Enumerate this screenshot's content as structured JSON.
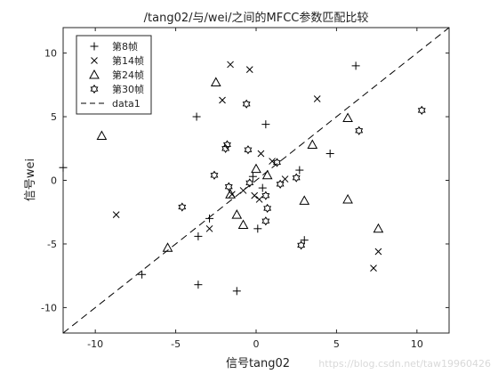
{
  "chart_data": {
    "type": "scatter",
    "title": "/tang02/与/wei/之间的MFCC参数匹配比较",
    "xlabel": "信号tang02",
    "ylabel": "信号wei",
    "xlim": [
      -12,
      12
    ],
    "ylim": [
      -12,
      12
    ],
    "xticks": [
      -10,
      -5,
      0,
      5,
      10
    ],
    "yticks": [
      -10,
      -5,
      0,
      5,
      10
    ],
    "grid": false,
    "legend_position": "top-left",
    "reference_line": {
      "name": "data1",
      "style": "dashed",
      "x": [
        -12,
        12
      ],
      "y": [
        -12,
        12
      ]
    },
    "series": [
      {
        "name": "第8帧",
        "marker": "plus",
        "points": [
          [
            -12,
            1
          ],
          [
            -3.7,
            5
          ],
          [
            0.6,
            4.4
          ],
          [
            -2.9,
            -3
          ],
          [
            -3.6,
            -4.4
          ],
          [
            -3.6,
            -8.2
          ],
          [
            -1.2,
            -8.7
          ],
          [
            -7.1,
            -7.4
          ],
          [
            0.1,
            -3.8
          ],
          [
            3,
            -4.7
          ],
          [
            2.7,
            0.8
          ],
          [
            4.6,
            2.1
          ],
          [
            6.2,
            9
          ],
          [
            -0.2,
            0.3
          ],
          [
            0.4,
            -0.6
          ]
        ]
      },
      {
        "name": "第14帧",
        "marker": "x",
        "points": [
          [
            -1.6,
            9.1
          ],
          [
            -0.4,
            8.7
          ],
          [
            3.8,
            6.4
          ],
          [
            -2.1,
            6.3
          ],
          [
            -8.7,
            -2.7
          ],
          [
            -2.9,
            -3.8
          ],
          [
            0.3,
            2.1
          ],
          [
            1,
            1.5
          ],
          [
            0.2,
            -1.5
          ],
          [
            -0.1,
            -1.2
          ],
          [
            -0.8,
            -0.8
          ],
          [
            -1.5,
            -1.1
          ],
          [
            1.8,
            0.1
          ],
          [
            7.6,
            -5.6
          ],
          [
            7.3,
            -6.9
          ]
        ]
      },
      {
        "name": "第24帧",
        "marker": "triangle",
        "points": [
          [
            -2.5,
            7.7
          ],
          [
            -9.6,
            3.5
          ],
          [
            5.7,
            4.9
          ],
          [
            3.5,
            2.8
          ],
          [
            -5.5,
            -5.3
          ],
          [
            -1.2,
            -2.7
          ],
          [
            -0.8,
            -3.5
          ],
          [
            0,
            0.9
          ],
          [
            0.7,
            0.4
          ],
          [
            3,
            -1.6
          ],
          [
            5.7,
            -1.5
          ],
          [
            7.6,
            -3.8
          ],
          [
            -1.6,
            -1.1
          ]
        ]
      },
      {
        "name": "第30帧",
        "marker": "star",
        "points": [
          [
            -0.6,
            6
          ],
          [
            10.3,
            5.5
          ],
          [
            6.4,
            3.9
          ],
          [
            -1.8,
            2.8
          ],
          [
            -1.9,
            2.5
          ],
          [
            -0.5,
            2.4
          ],
          [
            1.3,
            1.4
          ],
          [
            -2.6,
            0.4
          ],
          [
            -1.7,
            -0.5
          ],
          [
            -4.6,
            -2.1
          ],
          [
            -0.4,
            -0.2
          ],
          [
            0.6,
            -1.2
          ],
          [
            1.5,
            -0.3
          ],
          [
            2.5,
            0.2
          ],
          [
            0.7,
            -2.2
          ],
          [
            0.6,
            -3.2
          ],
          [
            2.8,
            -5.1
          ]
        ]
      }
    ]
  },
  "watermark": "https://blog.csdn.net/taw19960426"
}
